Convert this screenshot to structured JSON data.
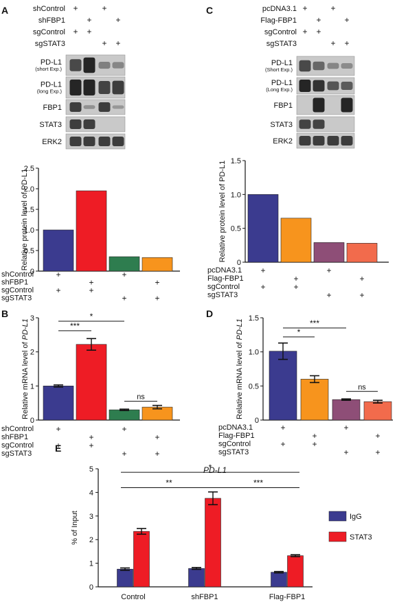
{
  "colors": {
    "navy": "#3b3b8f",
    "red": "#ee1c25",
    "green": "#2e7d4f",
    "orange": "#f7941d",
    "purple": "#8e4e77",
    "salmon": "#f26b4c",
    "blot_bg": "#c9c9c9",
    "band": "#1c1c1c",
    "error": "#111111"
  },
  "plus": "+",
  "panels": {
    "A": {
      "letter": "A",
      "header_rows": [
        {
          "label": "shControl",
          "marks": [
            true,
            false,
            true,
            false
          ]
        },
        {
          "label": "shFBP1",
          "marks": [
            false,
            true,
            false,
            true
          ]
        },
        {
          "label": "sgControl",
          "marks": [
            true,
            true,
            false,
            false
          ]
        },
        {
          "label": "sgSTAT3",
          "marks": [
            false,
            false,
            true,
            true
          ]
        }
      ],
      "blots": [
        {
          "label": "PD-L1",
          "sub": "(short Exp.)",
          "bands": [
            0.7,
            1.0,
            0.25,
            0.2
          ]
        },
        {
          "label": "PD-L1",
          "sub": "(long Exp.)",
          "bands": [
            1.0,
            1.0,
            0.75,
            0.8
          ]
        },
        {
          "label": "FBP1",
          "sub": "",
          "bands": [
            0.8,
            0.1,
            0.8,
            0.05
          ]
        },
        {
          "label": "STAT3",
          "sub": "",
          "bands": [
            0.8,
            0.8,
            0.0,
            0.0
          ]
        },
        {
          "label": "ERK2",
          "sub": "",
          "bands": [
            0.8,
            0.8,
            0.8,
            0.8
          ]
        }
      ]
    },
    "C": {
      "letter": "C",
      "header_rows": [
        {
          "label": "pcDNA3.1",
          "marks": [
            true,
            false,
            true,
            false
          ]
        },
        {
          "label": "Flag-FBP1",
          "marks": [
            false,
            true,
            false,
            true
          ]
        },
        {
          "label": "sgControl",
          "marks": [
            true,
            true,
            false,
            false
          ]
        },
        {
          "label": "sgSTAT3",
          "marks": [
            false,
            false,
            true,
            true
          ]
        }
      ],
      "blots": [
        {
          "label": "PD-L1",
          "sub": "(Short Exp.)",
          "bands": [
            0.7,
            0.45,
            0.2,
            0.15
          ]
        },
        {
          "label": "PD-L1",
          "sub": "(Long Exp.)",
          "bands": [
            1.0,
            0.9,
            0.6,
            0.55
          ]
        },
        {
          "label": "FBP1",
          "sub": "",
          "bands": [
            0.0,
            1.0,
            0.0,
            1.0
          ]
        },
        {
          "label": "STAT3",
          "sub": "",
          "bands": [
            0.75,
            0.75,
            0.0,
            0.0
          ]
        },
        {
          "label": "ERK2",
          "sub": "",
          "bands": [
            0.8,
            0.8,
            0.8,
            0.8
          ]
        }
      ]
    },
    "B": {
      "letter": "B"
    },
    "D": {
      "letter": "D"
    },
    "E": {
      "letter": "E"
    }
  },
  "chart_data": [
    {
      "id": "A-bar",
      "type": "bar",
      "ylabel": "Relative protein level of PD-L1",
      "ylim": [
        0,
        2.5
      ],
      "yticks": [
        0,
        0.5,
        1.0,
        1.5,
        2.0,
        2.5
      ],
      "ytick_labels": [
        "0",
        "0.5",
        "1.0",
        "1.5",
        "2.0",
        "2.5"
      ],
      "values": [
        1.0,
        1.95,
        0.35,
        0.33
      ],
      "bar_colors": [
        "#3b3b8f",
        "#ee1c25",
        "#2e7d4f",
        "#f7941d"
      ],
      "table": [
        {
          "label": "shControl",
          "marks": [
            true,
            false,
            true,
            false
          ]
        },
        {
          "label": "shFBP1",
          "marks": [
            false,
            true,
            false,
            true
          ]
        },
        {
          "label": "sgControl",
          "marks": [
            true,
            true,
            false,
            false
          ]
        },
        {
          "label": "sgSTAT3",
          "marks": [
            false,
            false,
            true,
            true
          ]
        }
      ]
    },
    {
      "id": "C-bar",
      "type": "bar",
      "ylabel": "Relative protein level of PD-L1",
      "ylim": [
        0,
        1.5
      ],
      "yticks": [
        0,
        0.5,
        1.0,
        1.5
      ],
      "ytick_labels": [
        "0",
        "0.5",
        "1.0",
        "1.5"
      ],
      "values": [
        1.0,
        0.65,
        0.29,
        0.28
      ],
      "bar_colors": [
        "#3b3b8f",
        "#f7941d",
        "#8e4e77",
        "#f26b4c"
      ],
      "table": [
        {
          "label": "pcDNA3.1",
          "marks": [
            true,
            false,
            true,
            false
          ]
        },
        {
          "label": "Flag-FBP1",
          "marks": [
            false,
            true,
            false,
            true
          ]
        },
        {
          "label": "sgControl",
          "marks": [
            true,
            true,
            false,
            false
          ]
        },
        {
          "label": "sgSTAT3",
          "marks": [
            false,
            false,
            true,
            true
          ]
        }
      ]
    },
    {
      "id": "B-bar",
      "type": "bar",
      "ylabel_pre": "Relative mRNA level of ",
      "ylabel_it": "PD-L1",
      "ylim": [
        0,
        3
      ],
      "yticks": [
        0,
        1,
        2,
        3
      ],
      "ytick_labels": [
        "0",
        "1",
        "2",
        "3"
      ],
      "values": [
        1.0,
        2.22,
        0.3,
        0.38
      ],
      "errors": [
        0.03,
        0.17,
        0.02,
        0.05
      ],
      "bar_colors": [
        "#3b3b8f",
        "#ee1c25",
        "#2e7d4f",
        "#f7941d"
      ],
      "significance": [
        {
          "from": 0,
          "to": 1,
          "y": 2.62,
          "label": "***"
        },
        {
          "from": 0,
          "to": 2,
          "y": 2.9,
          "label": "*"
        },
        {
          "from": 2,
          "to": 3,
          "y": 0.55,
          "label": "ns"
        }
      ],
      "table": [
        {
          "label": "shControl",
          "marks": [
            true,
            false,
            true,
            false
          ]
        },
        {
          "label": "shFBP1",
          "marks": [
            false,
            true,
            false,
            true
          ]
        },
        {
          "label": "sgControl",
          "marks": [
            true,
            true,
            false,
            false
          ]
        },
        {
          "label": "sgSTAT3",
          "marks": [
            false,
            false,
            true,
            true
          ]
        }
      ]
    },
    {
      "id": "D-bar",
      "type": "bar",
      "ylabel_pre": "Relative mRNA level of ",
      "ylabel_it": "PD-L1",
      "ylim": [
        0,
        1.5
      ],
      "yticks": [
        0,
        0.5,
        1.0,
        1.5
      ],
      "ytick_labels": [
        "0",
        "0.5",
        "1.0",
        "1.5"
      ],
      "values": [
        1.01,
        0.6,
        0.3,
        0.27
      ],
      "errors": [
        0.12,
        0.05,
        0.01,
        0.02
      ],
      "bar_colors": [
        "#3b3b8f",
        "#f7941d",
        "#8e4e77",
        "#f26b4c"
      ],
      "significance": [
        {
          "from": 0,
          "to": 1,
          "y": 1.22,
          "label": "*"
        },
        {
          "from": 0,
          "to": 2,
          "y": 1.35,
          "label": "***"
        },
        {
          "from": 2,
          "to": 3,
          "y": 0.42,
          "label": "ns"
        }
      ],
      "table": [
        {
          "label": "pcDNA3.1",
          "marks": [
            true,
            false,
            true,
            false
          ]
        },
        {
          "label": "Flag-FBP1",
          "marks": [
            false,
            true,
            false,
            true
          ]
        },
        {
          "label": "sgControl",
          "marks": [
            true,
            true,
            false,
            false
          ]
        },
        {
          "label": "sgSTAT3",
          "marks": [
            false,
            false,
            true,
            true
          ]
        }
      ]
    },
    {
      "id": "E-bar",
      "type": "bar",
      "title": "PD-L1",
      "ylabel": "% of Input",
      "ylim": [
        0,
        5
      ],
      "yticks": [
        0,
        1,
        2,
        3,
        4,
        5
      ],
      "ytick_labels": [
        "0",
        "1",
        "2",
        "3",
        "4",
        "5"
      ],
      "categories": [
        "Control",
        "shFBP1",
        "Flag-FBP1"
      ],
      "series": [
        {
          "name": "IgG",
          "color": "#3b3b8f",
          "values": [
            0.75,
            0.78,
            0.62
          ],
          "errors": [
            0.05,
            0.04,
            0.03
          ]
        },
        {
          "name": "STAT3",
          "color": "#ee1c25",
          "values": [
            2.35,
            3.75,
            1.32
          ],
          "errors": [
            0.12,
            0.27,
            0.04
          ]
        }
      ],
      "significance": [
        {
          "from": "0:1",
          "to": "1:1",
          "y": 4.2,
          "label": "**"
        },
        {
          "from": "0:1",
          "to": "2:1",
          "y": 4.85,
          "label": "*"
        },
        {
          "from": "1:1",
          "to": "2:1",
          "y": 4.2,
          "label": "***"
        }
      ],
      "legend": "right"
    }
  ]
}
